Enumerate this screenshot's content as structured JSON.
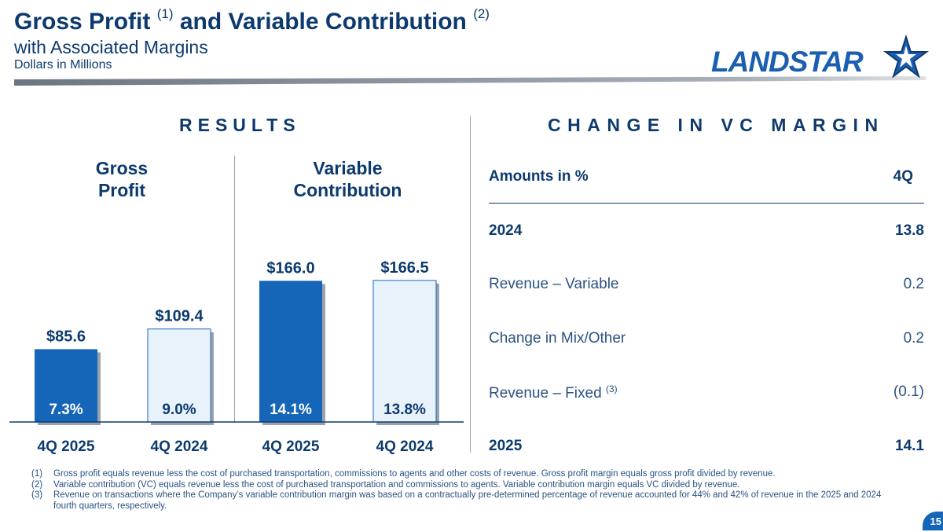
{
  "header": {
    "title_part1": "Gross Profit ",
    "title_note1": "(1)",
    "title_part2": " and Variable Contribution ",
    "title_note2": "(2)",
    "subtitle": "with Associated Margins",
    "units": "Dollars in Millions"
  },
  "logo": {
    "text": "LANDSTAR",
    "icon": "star-logo-icon"
  },
  "results": {
    "heading": "RESULTS",
    "gross_label_line1": "Gross",
    "gross_label_line2": "Profit",
    "vc_label_line1": "Variable",
    "vc_label_line2": "Contribution"
  },
  "chart_data": {
    "type": "bar",
    "categories": [
      "4Q 2025",
      "4Q 2024",
      "4Q 2025",
      "4Q 2024"
    ],
    "groups": [
      "Gross Profit",
      "Variable Contribution"
    ],
    "values": [
      85.6,
      109.4,
      166.0,
      166.5
    ],
    "value_labels": [
      "$85.6",
      "$109.4",
      "$166.0",
      "$166.5"
    ],
    "margin_labels": [
      "7.3%",
      "9.0%",
      "14.1%",
      "13.8%"
    ],
    "margins": [
      7.3,
      9.0,
      14.1,
      13.8
    ],
    "colors": {
      "current": "#1565b8",
      "prior": "#e8f2fb",
      "prior_border": "#1565b8"
    }
  },
  "change": {
    "heading": "CHANGE IN VC MARGIN",
    "col_label": "Amounts in %",
    "col_period": "4Q",
    "rows": [
      {
        "label": "2024",
        "value": "13.8"
      },
      {
        "label": "Revenue – Variable",
        "value": "0.2"
      },
      {
        "label": "Change in Mix/Other",
        "value": "0.2"
      },
      {
        "label": "Revenue – Fixed ",
        "note": "(3)",
        "value": "(0.1)"
      },
      {
        "label": "2025",
        "value": "14.1"
      }
    ]
  },
  "footnotes": [
    {
      "num": "(1)",
      "text": "Gross profit equals revenue less the cost of purchased transportation, commissions to agents and other costs of revenue.  Gross profit margin equals gross profit divided by revenue."
    },
    {
      "num": "(2)",
      "text": "Variable contribution (VC) equals revenue less the cost of purchased transportation and commissions to agents.  Variable contribution margin equals VC divided by revenue."
    },
    {
      "num": "(3)",
      "text": "Revenue on transactions where the Company’s variable contribution margin was based on a contractually pre-determined percentage of revenue accounted for 44% and 42% of revenue in the 2025 and 2024 fourth quarters, respectively."
    }
  ],
  "page_number": "15"
}
